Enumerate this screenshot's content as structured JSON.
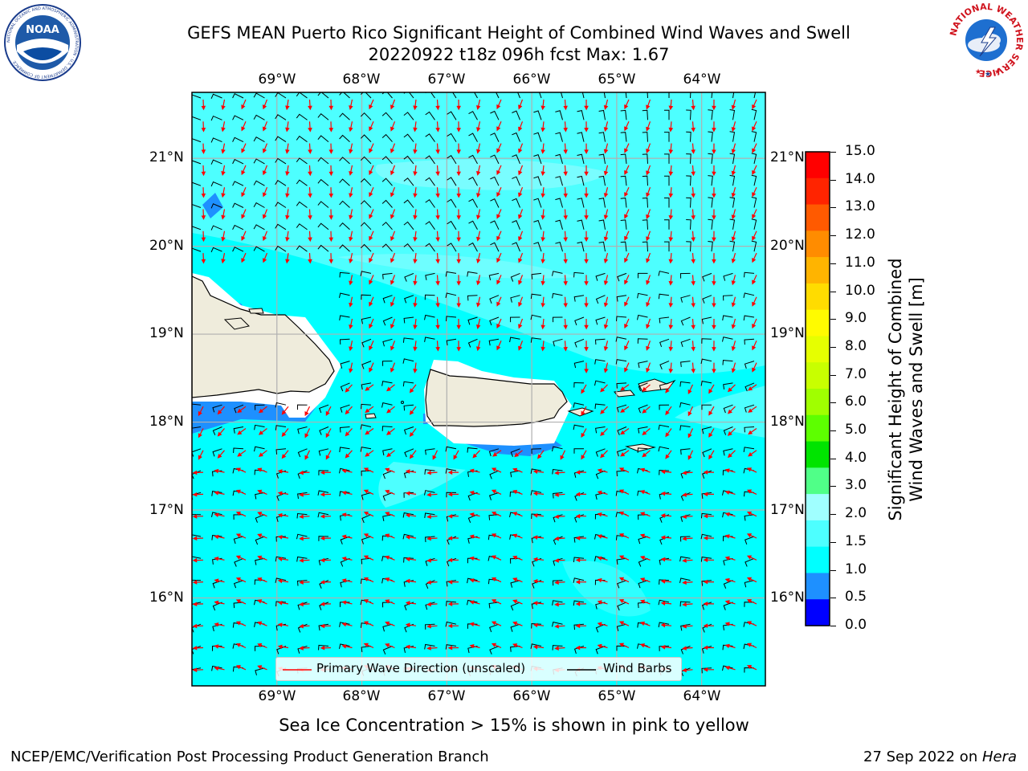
{
  "header": {
    "title_line1": "GEFS MEAN Puerto Rico Significant Height of Combined Wind Waves and Swell",
    "title_line2": "20220922 t18z 096h fcst   Max: 1.67"
  },
  "logos": {
    "noaa": {
      "text": "NOAA",
      "ring_text": "NATIONAL OCEANIC AND ATMOSPHERIC ADMINISTRATION · U.S. DEPARTMENT OF COMMERCE"
    },
    "nws": {
      "ring_text": "NATIONAL WEATHER SERVICE"
    }
  },
  "map": {
    "lon_labels": [
      "69°W",
      "68°W",
      "67°W",
      "66°W",
      "65°W",
      "64°W"
    ],
    "lat_labels": [
      "21°N",
      "20°N",
      "19°N",
      "18°N",
      "17°N",
      "16°N"
    ],
    "lon_values": [
      -69,
      -68,
      -67,
      -66,
      -65,
      -64
    ],
    "lat_values": [
      21,
      20,
      19,
      18,
      17,
      16
    ],
    "extent": {
      "lon_min": -70.0,
      "lon_max": -63.25,
      "lat_min": 15.0,
      "lat_max": 21.75
    },
    "legend": {
      "wave_label": "Primary Wave Direction (unscaled)",
      "barb_label": "Wind Barbs"
    },
    "colors": {
      "ocean_main": "#00ffff",
      "ocean_light": "#4dffff",
      "ocean_lighter": "#9ffcff",
      "shallow": "#1e90ff",
      "land": "#efecdc",
      "wave_arrow": "#ff0000",
      "barb": "#000000"
    }
  },
  "colorbar": {
    "label_line1": "Significant Height of Combined",
    "label_line2": "Wind Waves and Swell [m]",
    "ticks": [
      "15.0",
      "14.0",
      "13.0",
      "12.0",
      "11.0",
      "10.0",
      "9.0",
      "8.0",
      "7.0",
      "6.0",
      "5.0",
      "4.0",
      "3.0",
      "2.0",
      "1.5",
      "1.0",
      "0.5",
      "0.0"
    ],
    "bands": [
      "#ff0000",
      "#ff2400",
      "#ff5a00",
      "#ff8c00",
      "#ffb400",
      "#ffdc00",
      "#fffb00",
      "#e6ff00",
      "#c8ff00",
      "#a0ff00",
      "#5dff00",
      "#00e400",
      "#50ff88",
      "#a0ffff",
      "#4dffff",
      "#00ffff",
      "#1e90ff",
      "#0000ff"
    ]
  },
  "footer": {
    "sea_ice_note": "Sea Ice Concentration > 15% is shown in pink to yellow",
    "credit": "NCEP/EMC/Verification Post Processing Product Generation Branch",
    "date": "27 Sep 2022 on ",
    "machine": "Hera"
  }
}
